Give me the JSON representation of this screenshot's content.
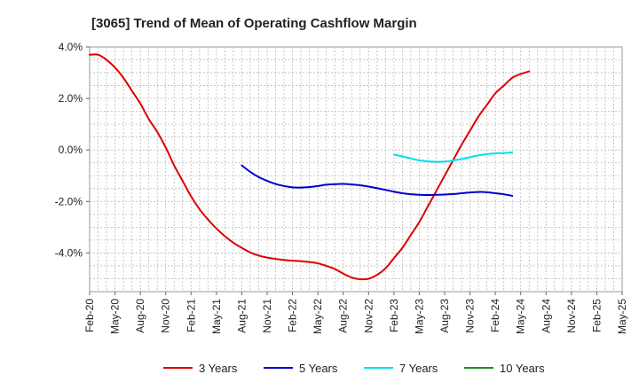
{
  "chart_data": {
    "type": "line",
    "title": "[3065]  Trend of Mean of Operating Cashflow Margin",
    "xlabel": "",
    "ylabel": "",
    "ylim": [
      -5.5,
      4.0
    ],
    "y_ticks": [
      {
        "value": 4.0,
        "label": "4.0%"
      },
      {
        "value": 2.0,
        "label": "2.0%"
      },
      {
        "value": 0.0,
        "label": "0.0%"
      },
      {
        "value": -2.0,
        "label": "-2.0%"
      },
      {
        "value": -4.0,
        "label": "-4.0%"
      }
    ],
    "x_ticks": [
      "Feb-20",
      "May-20",
      "Aug-20",
      "Nov-20",
      "Feb-21",
      "May-21",
      "Aug-21",
      "Nov-21",
      "Feb-22",
      "May-22",
      "Aug-22",
      "Nov-22",
      "Feb-23",
      "May-23",
      "Aug-23",
      "Nov-23",
      "Feb-24",
      "May-24",
      "Aug-24",
      "Nov-24",
      "Feb-25",
      "May-25"
    ],
    "grid": true,
    "legend_position": "bottom",
    "series": [
      {
        "name": "3 Years",
        "color": "#dd0000",
        "points": [
          [
            0,
            3.7
          ],
          [
            1,
            3.7
          ],
          [
            2,
            3.5
          ],
          [
            3,
            3.2
          ],
          [
            4,
            2.8
          ],
          [
            5,
            2.3
          ],
          [
            6,
            1.8
          ],
          [
            7,
            1.2
          ],
          [
            8,
            0.7
          ],
          [
            9,
            0.1
          ],
          [
            10,
            -0.6
          ],
          [
            11,
            -1.2
          ],
          [
            12,
            -1.8
          ],
          [
            13,
            -2.3
          ],
          [
            14,
            -2.7
          ],
          [
            15,
            -3.05
          ],
          [
            16,
            -3.35
          ],
          [
            17,
            -3.6
          ],
          [
            18,
            -3.8
          ],
          [
            19,
            -3.98
          ],
          [
            20,
            -4.1
          ],
          [
            21,
            -4.18
          ],
          [
            22,
            -4.23
          ],
          [
            23,
            -4.27
          ],
          [
            24,
            -4.3
          ],
          [
            25,
            -4.32
          ],
          [
            26,
            -4.35
          ],
          [
            27,
            -4.4
          ],
          [
            28,
            -4.5
          ],
          [
            29,
            -4.62
          ],
          [
            30,
            -4.8
          ],
          [
            31,
            -4.95
          ],
          [
            32,
            -5.02
          ],
          [
            33,
            -5.0
          ],
          [
            34,
            -4.85
          ],
          [
            35,
            -4.6
          ],
          [
            36,
            -4.2
          ],
          [
            37,
            -3.8
          ],
          [
            38,
            -3.3
          ],
          [
            39,
            -2.8
          ],
          [
            40,
            -2.2
          ],
          [
            41,
            -1.6
          ],
          [
            42,
            -1.0
          ],
          [
            43,
            -0.4
          ],
          [
            44,
            0.2
          ],
          [
            45,
            0.75
          ],
          [
            46,
            1.3
          ],
          [
            47,
            1.75
          ],
          [
            48,
            2.2
          ],
          [
            49,
            2.5
          ],
          [
            50,
            2.8
          ],
          [
            51,
            2.95
          ],
          [
            52,
            3.05
          ]
        ]
      },
      {
        "name": "5 Years",
        "color": "#0000cc",
        "points": [
          [
            18,
            -0.6
          ],
          [
            19,
            -0.85
          ],
          [
            20,
            -1.05
          ],
          [
            21,
            -1.2
          ],
          [
            22,
            -1.32
          ],
          [
            23,
            -1.4
          ],
          [
            24,
            -1.45
          ],
          [
            25,
            -1.46
          ],
          [
            26,
            -1.44
          ],
          [
            27,
            -1.4
          ],
          [
            28,
            -1.35
          ],
          [
            29,
            -1.33
          ],
          [
            30,
            -1.32
          ],
          [
            31,
            -1.34
          ],
          [
            32,
            -1.37
          ],
          [
            33,
            -1.42
          ],
          [
            34,
            -1.48
          ],
          [
            35,
            -1.55
          ],
          [
            36,
            -1.62
          ],
          [
            37,
            -1.68
          ],
          [
            38,
            -1.72
          ],
          [
            39,
            -1.74
          ],
          [
            40,
            -1.75
          ],
          [
            41,
            -1.74
          ],
          [
            42,
            -1.73
          ],
          [
            43,
            -1.71
          ],
          [
            44,
            -1.68
          ],
          [
            45,
            -1.65
          ],
          [
            46,
            -1.63
          ],
          [
            47,
            -1.64
          ],
          [
            48,
            -1.68
          ],
          [
            49,
            -1.72
          ],
          [
            50,
            -1.78
          ]
        ]
      },
      {
        "name": "7 Years",
        "color": "#00e0e8",
        "points": [
          [
            36,
            -0.18
          ],
          [
            37,
            -0.25
          ],
          [
            38,
            -0.33
          ],
          [
            39,
            -0.4
          ],
          [
            40,
            -0.44
          ],
          [
            41,
            -0.46
          ],
          [
            42,
            -0.45
          ],
          [
            43,
            -0.41
          ],
          [
            44,
            -0.35
          ],
          [
            45,
            -0.28
          ],
          [
            46,
            -0.21
          ],
          [
            47,
            -0.16
          ],
          [
            48,
            -0.13
          ],
          [
            49,
            -0.12
          ],
          [
            50,
            -0.1
          ]
        ]
      },
      {
        "name": "10 Years",
        "color": "#228b22",
        "points": []
      }
    ]
  }
}
